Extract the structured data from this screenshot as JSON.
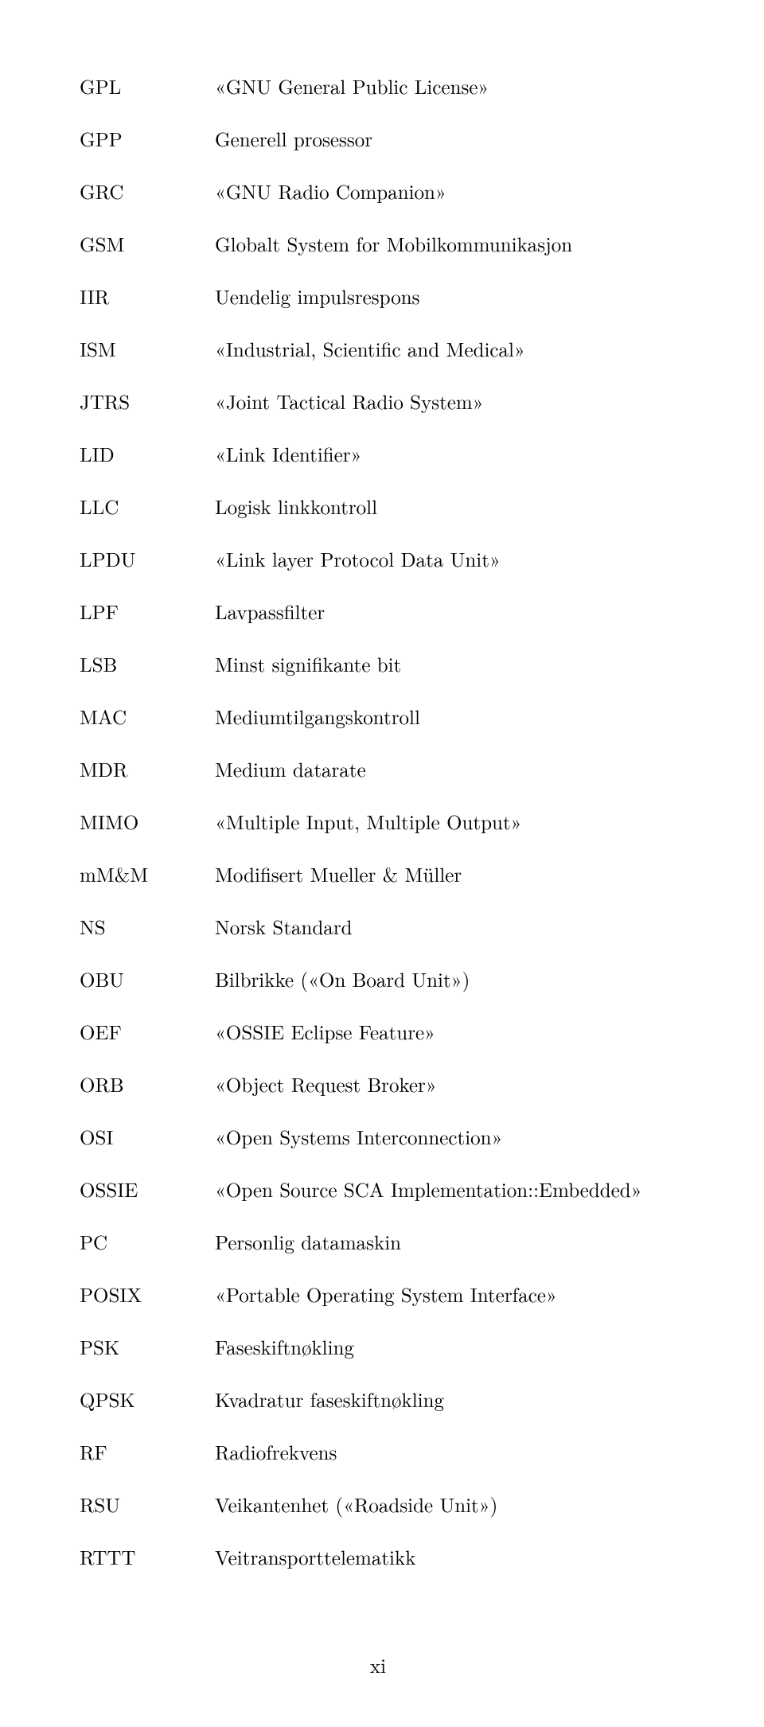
{
  "entries": [
    {
      "abbr": "GPL",
      "def": "«GNU General Public License»"
    },
    {
      "abbr": "GPP",
      "def": "Generell prosessor"
    },
    {
      "abbr": "GRC",
      "def": "«GNU Radio Companion»"
    },
    {
      "abbr": "GSM",
      "def": "Globalt System for Mobilkommunikasjon"
    },
    {
      "abbr": "IIR",
      "def": "Uendelig impulsrespons"
    },
    {
      "abbr": "ISM",
      "def": "«Industrial, Scientific and Medical»"
    },
    {
      "abbr": "JTRS",
      "def": "«Joint Tactical Radio System»"
    },
    {
      "abbr": "LID",
      "def": "«Link Identifier»"
    },
    {
      "abbr": "LLC",
      "def": "Logisk linkkontroll"
    },
    {
      "abbr": "LPDU",
      "def": "«Link layer Protocol Data Unit»"
    },
    {
      "abbr": "LPF",
      "def": "Lavpassfilter"
    },
    {
      "abbr": "LSB",
      "def": "Minst signifikante bit"
    },
    {
      "abbr": "MAC",
      "def": "Mediumtilgangskontroll"
    },
    {
      "abbr": "MDR",
      "def": "Medium datarate"
    },
    {
      "abbr": "MIMO",
      "def": "«Multiple Input, Multiple Output»"
    },
    {
      "abbr": "mM&M",
      "def": "Modifisert Mueller & Müller"
    },
    {
      "abbr": "NS",
      "def": "Norsk Standard"
    },
    {
      "abbr": "OBU",
      "def": "Bilbrikke («On Board Unit»)"
    },
    {
      "abbr": "OEF",
      "def": "«OSSIE Eclipse Feature»"
    },
    {
      "abbr": "ORB",
      "def": "«Object Request Broker»"
    },
    {
      "abbr": "OSI",
      "def": "«Open Systems Interconnection»"
    },
    {
      "abbr": "OSSIE",
      "def": "«Open Source SCA Implementation::Embedded»"
    },
    {
      "abbr": "PC",
      "def": "Personlig datamaskin"
    },
    {
      "abbr": "POSIX",
      "def": "«Portable Operating System Interface»"
    },
    {
      "abbr": "PSK",
      "def": "Faseskiftnøkling"
    },
    {
      "abbr": "QPSK",
      "def": "Kvadratur faseskiftnøkling"
    },
    {
      "abbr": "RF",
      "def": "Radiofrekvens"
    },
    {
      "abbr": "RSU",
      "def": "Veikantenhet («Roadside Unit»)"
    },
    {
      "abbr": "RTTT",
      "def": "Veitransporttelematikk"
    }
  ],
  "page_number": "xi"
}
